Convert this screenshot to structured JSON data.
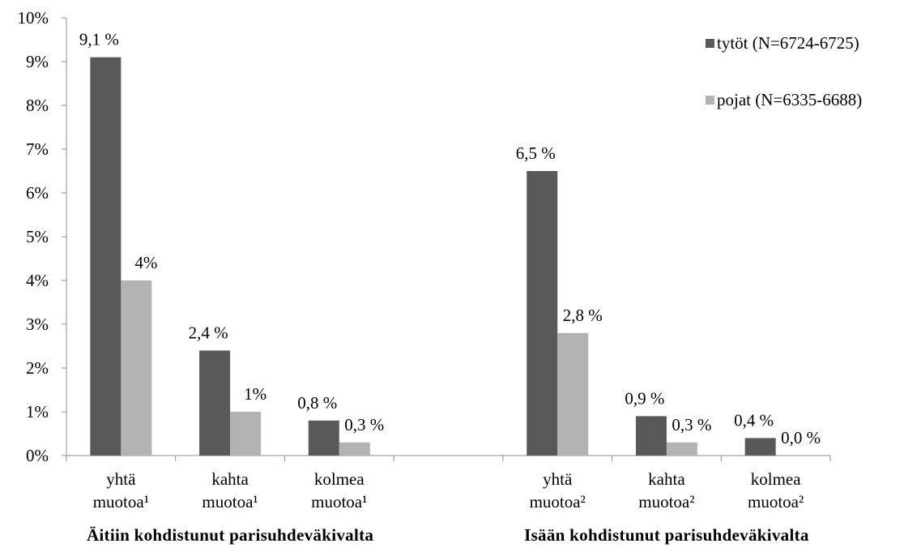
{
  "chart_data": {
    "type": "bar",
    "ylim": [
      0,
      10
    ],
    "y_ticks": [
      "0%",
      "1%",
      "2%",
      "3%",
      "4%",
      "5%",
      "6%",
      "7%",
      "8%",
      "9%",
      "10%"
    ],
    "groups": [
      {
        "title": "Äitiin kohdistunut parisuhdeväkivalta"
      },
      {
        "title": "Isään kohdistunut parisuhdeväkivalta"
      }
    ],
    "categories": [
      [
        "yhtä",
        "muotoa¹"
      ],
      [
        "kahta",
        "muotoa¹"
      ],
      [
        "kolmea",
        "muotoa¹"
      ],
      [
        "",
        ""
      ],
      [
        "yhtä",
        "muotoa²"
      ],
      [
        "kahta",
        "muotoa²"
      ],
      [
        "kolmea",
        "muotoa²"
      ]
    ],
    "series": [
      {
        "name": "tytöt (N=6724-6725)",
        "color": "#595959",
        "values": [
          9.1,
          2.4,
          0.8,
          null,
          6.5,
          0.9,
          0.4
        ],
        "labels": [
          "9,1 %",
          "2,4 %",
          "0,8 %",
          "",
          "6,5 %",
          "0,9 %",
          "0,4 %"
        ]
      },
      {
        "name": "pojat (N=6335-6688)",
        "color": "#b3b3b3",
        "values": [
          4.0,
          1.0,
          0.3,
          null,
          2.8,
          0.3,
          0.0
        ],
        "labels": [
          "4%",
          "1%",
          "0,3 %",
          "",
          "2,8 %",
          "0,3 %",
          "0,0 %"
        ]
      }
    ],
    "legend_position": "top-right",
    "grid": false
  }
}
